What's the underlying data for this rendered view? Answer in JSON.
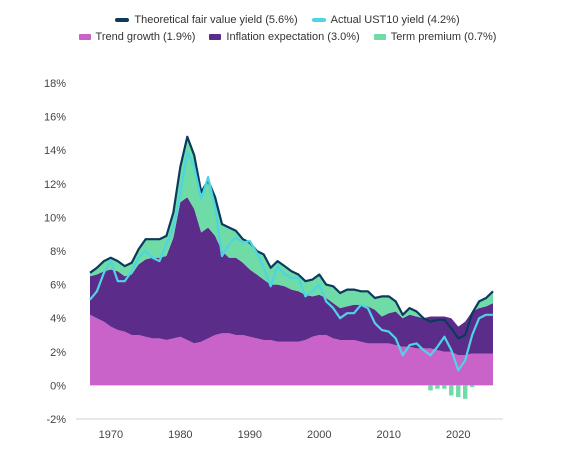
{
  "chart_data": {
    "type": "area",
    "title": "",
    "xlabel": "",
    "ylabel": "",
    "xlim": [
      1967,
      2025
    ],
    "ylim": [
      -2,
      18
    ],
    "x_ticks": [
      "1970",
      "1980",
      "1990",
      "2000",
      "2010",
      "2020"
    ],
    "x_tick_values": [
      1970,
      1980,
      1990,
      2000,
      2010,
      2020
    ],
    "y_ticks": [
      "-2%",
      "0%",
      "2%",
      "4%",
      "6%",
      "8%",
      "10%",
      "12%",
      "14%",
      "16%",
      "18%"
    ],
    "y_tick_values": [
      -2,
      0,
      2,
      4,
      6,
      8,
      10,
      12,
      14,
      16,
      18
    ],
    "legend_position": "top",
    "x": [
      1967,
      1968,
      1969,
      1970,
      1971,
      1972,
      1973,
      1974,
      1975,
      1976,
      1977,
      1978,
      1979,
      1980,
      1981,
      1982,
      1983,
      1984,
      1985,
      1986,
      1987,
      1988,
      1989,
      1990,
      1991,
      1992,
      1993,
      1994,
      1995,
      1996,
      1997,
      1998,
      1999,
      2000,
      2001,
      2002,
      2003,
      2004,
      2005,
      2006,
      2007,
      2008,
      2009,
      2010,
      2011,
      2012,
      2013,
      2014,
      2015,
      2016,
      2017,
      2018,
      2019,
      2020,
      2021,
      2022,
      2023,
      2024,
      2025
    ],
    "series": [
      {
        "name": "Trend growth (1.9%)",
        "kind": "area",
        "color": "#c963c9",
        "values": [
          4.2,
          4.0,
          3.8,
          3.5,
          3.3,
          3.2,
          3.0,
          3.0,
          2.9,
          2.8,
          2.8,
          2.7,
          2.8,
          2.9,
          2.7,
          2.5,
          2.6,
          2.8,
          3.0,
          3.1,
          3.1,
          3.0,
          3.0,
          2.9,
          2.8,
          2.7,
          2.7,
          2.6,
          2.6,
          2.6,
          2.6,
          2.7,
          2.9,
          3.0,
          3.0,
          2.8,
          2.7,
          2.7,
          2.7,
          2.6,
          2.5,
          2.5,
          2.5,
          2.5,
          2.4,
          2.3,
          2.3,
          2.2,
          2.2,
          2.2,
          2.1,
          2.0,
          2.0,
          1.8,
          1.8,
          1.9,
          1.9,
          1.9,
          1.9
        ]
      },
      {
        "name": "Inflation expectation (3.0%)",
        "kind": "area",
        "color": "#5b2c8a",
        "values": [
          2.3,
          2.6,
          3.0,
          3.4,
          3.5,
          3.3,
          3.6,
          4.2,
          4.6,
          4.8,
          4.8,
          5.0,
          6.0,
          8.0,
          8.5,
          8.0,
          6.5,
          6.6,
          5.9,
          4.9,
          4.5,
          4.6,
          4.3,
          4.0,
          3.8,
          3.6,
          3.3,
          3.4,
          3.3,
          3.1,
          3.0,
          2.7,
          2.4,
          2.4,
          2.2,
          2.1,
          1.9,
          2.0,
          2.1,
          2.2,
          2.2,
          2.0,
          1.6,
          1.8,
          2.0,
          1.7,
          1.9,
          1.9,
          1.8,
          1.9,
          2.0,
          2.1,
          2.0,
          1.7,
          2.0,
          2.5,
          2.7,
          2.8,
          3.0
        ]
      },
      {
        "name": "Term premium (0.7%)",
        "kind": "area",
        "color": "#6fdba6",
        "values": [
          0.2,
          0.4,
          0.6,
          0.7,
          0.6,
          0.6,
          0.7,
          0.9,
          1.2,
          1.1,
          1.1,
          1.2,
          1.5,
          2.1,
          3.6,
          3.2,
          2.4,
          2.8,
          2.3,
          1.6,
          1.8,
          1.6,
          1.4,
          1.6,
          1.4,
          1.5,
          1.0,
          1.4,
          1.2,
          1.1,
          1.0,
          0.8,
          1.0,
          1.2,
          0.8,
          1.0,
          0.9,
          1.0,
          0.9,
          0.8,
          0.9,
          0.7,
          1.2,
          1.0,
          0.6,
          0.2,
          0.4,
          0.3,
          0.0,
          -0.3,
          -0.2,
          -0.2,
          -0.6,
          -0.7,
          -0.8,
          -0.1,
          0.4,
          0.5,
          0.7
        ]
      },
      {
        "name": "Theoretical fair value yield (5.6%)",
        "kind": "line",
        "color": "#0b3a5e",
        "values": [
          6.7,
          7.0,
          7.4,
          7.6,
          7.4,
          7.1,
          7.3,
          8.1,
          8.7,
          8.7,
          8.7,
          8.9,
          10.3,
          13.0,
          14.8,
          13.7,
          11.5,
          12.2,
          11.2,
          9.6,
          9.4,
          9.2,
          8.7,
          8.5,
          8.0,
          7.8,
          7.0,
          7.4,
          7.1,
          6.8,
          6.6,
          6.2,
          6.3,
          6.6,
          6.0,
          5.9,
          5.5,
          5.7,
          5.7,
          5.6,
          5.6,
          5.2,
          5.3,
          5.3,
          5.0,
          4.2,
          4.6,
          4.4,
          4.0,
          3.8,
          3.9,
          3.9,
          3.4,
          2.8,
          3.0,
          4.3,
          5.0,
          5.2,
          5.6
        ]
      },
      {
        "name": "Actual UST10 yield (4.2%)",
        "kind": "line",
        "color": "#4fd4e3",
        "values": [
          5.1,
          5.6,
          6.7,
          7.4,
          6.2,
          6.2,
          6.8,
          7.6,
          8.0,
          7.6,
          7.4,
          8.4,
          9.4,
          11.4,
          13.9,
          13.0,
          11.1,
          12.4,
          10.6,
          7.7,
          8.4,
          8.8,
          8.5,
          8.6,
          7.9,
          7.0,
          5.9,
          7.1,
          6.6,
          6.4,
          6.4,
          5.3,
          5.6,
          6.0,
          5.0,
          4.6,
          4.0,
          4.3,
          4.3,
          4.8,
          4.6,
          3.7,
          3.3,
          3.2,
          2.8,
          1.8,
          2.4,
          2.5,
          2.1,
          1.8,
          2.3,
          2.9,
          2.1,
          0.9,
          1.5,
          3.0,
          4.0,
          4.2,
          4.2
        ]
      }
    ]
  }
}
